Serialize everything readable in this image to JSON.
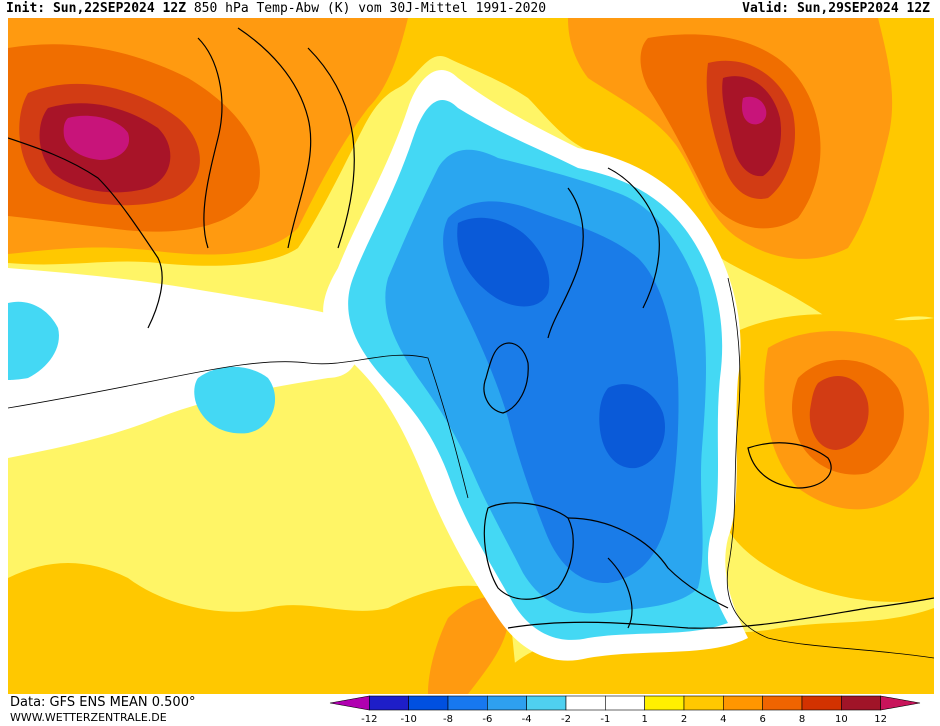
{
  "header": {
    "init_label": "Init:",
    "init_time": "Sun,22SEP2024 12Z",
    "title": "850 hPa Temp-Abw (K) vom 30J-Mittel 1991-2020",
    "valid_label": "Valid:",
    "valid_time": "Sun,29SEP2024 12Z"
  },
  "footer": {
    "data_line": "Data: GFS ENS MEAN 0.500°",
    "site": "WWW.WETTERZENTRALE.DE"
  },
  "legend": {
    "ticks": [
      "-12",
      "-10",
      "-8",
      "-6",
      "-4",
      "-2",
      "-1",
      "1",
      "2",
      "4",
      "6",
      "8",
      "10",
      "12"
    ],
    "colors": [
      "#b000b0",
      "#1e1ec8",
      "#0050e0",
      "#1778f0",
      "#2ea0f0",
      "#4fd0f0",
      "#ffffff",
      "#ffffff",
      "#fff000",
      "#ffc800",
      "#ff9600",
      "#f06400",
      "#d23200",
      "#a01428",
      "#c8145a"
    ]
  },
  "map_colors": {
    "anom_p1": "#fff566",
    "anom_p2": "#ffc800",
    "anom_p4": "#ff9a10",
    "anom_p6": "#f06e00",
    "anom_p8": "#d23c14",
    "anom_p10": "#a81428",
    "anom_p12": "#c8147a",
    "anom_m1": "#ffffff",
    "anom_m2": "#44d8f4",
    "anom_m4": "#2aa6f0",
    "anom_m6": "#1a7ce8",
    "anom_m8": "#0a5ad8",
    "coast": "#000000"
  }
}
